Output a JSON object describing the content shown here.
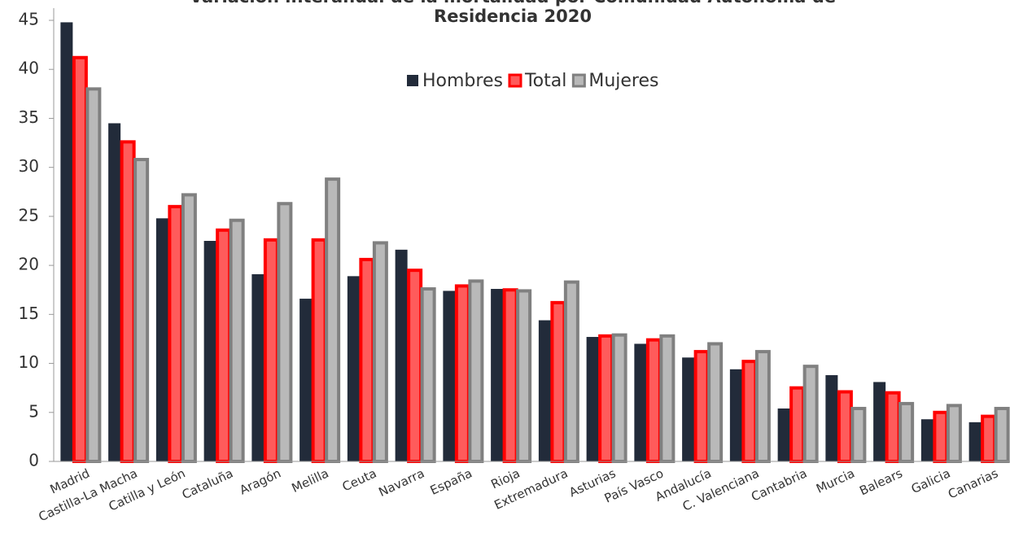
{
  "chart_data": {
    "type": "bar",
    "title": [
      "Variación interanual de la mortalidad por Comunidad Autónoma de",
      "Residencia 2020"
    ],
    "categories": [
      "Madrid",
      "Castilla-La Macha",
      "Catilla y León",
      "Cataluña",
      "Aragón",
      "Melilla",
      "Ceuta",
      "Navarra",
      "España",
      "Rioja",
      "Extremadura",
      "Asturias",
      "País Vasco",
      "Andalucía",
      "C. Valenciana",
      "Cantabria",
      "Murcia",
      "Balears",
      "Galicia",
      "Canarias"
    ],
    "series": [
      {
        "name": "Hombres",
        "color": "#222b3a",
        "values": [
          44.8,
          34.5,
          24.8,
          22.5,
          19.1,
          16.6,
          18.9,
          21.6,
          17.4,
          17.6,
          14.4,
          12.7,
          12.0,
          10.6,
          9.4,
          5.4,
          8.8,
          8.1,
          4.3,
          4.0
        ]
      },
      {
        "name": "Total",
        "color": "#ff5b5b",
        "border": "#ff0000",
        "values": [
          41.2,
          32.6,
          26.0,
          23.6,
          22.6,
          22.6,
          20.6,
          19.5,
          17.9,
          17.5,
          16.2,
          12.8,
          12.4,
          11.2,
          10.2,
          7.5,
          7.1,
          7.0,
          5.0,
          4.6
        ]
      },
      {
        "name": "Mujeres",
        "color": "#b9b9b9",
        "border": "#808080",
        "values": [
          38.0,
          30.8,
          27.2,
          24.6,
          26.3,
          28.8,
          22.3,
          17.6,
          18.4,
          17.4,
          18.3,
          12.9,
          12.8,
          12.0,
          11.2,
          9.7,
          5.4,
          5.9,
          5.7,
          5.4
        ]
      }
    ],
    "ylim": [
      0,
      45
    ],
    "yticks": [
      0,
      5,
      10,
      15,
      20,
      25,
      30,
      35,
      40,
      45
    ],
    "legend": "top"
  }
}
